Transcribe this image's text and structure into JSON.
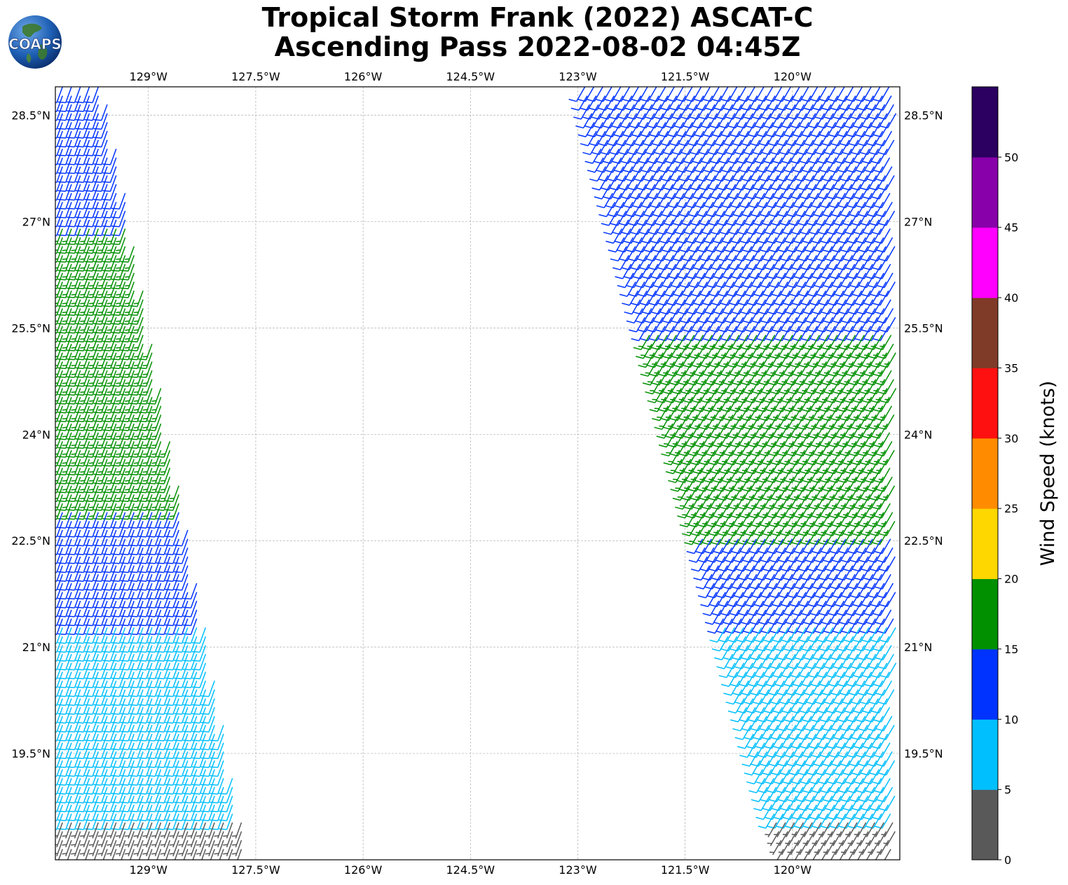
{
  "title": {
    "line1": "Tropical Storm Frank (2022) ASCAT-C",
    "line2": "Ascending Pass 2022-08-02 04:45Z"
  },
  "logo": {
    "text": "COAPS"
  },
  "map": {
    "lon_range": [
      -130.3,
      -118.5
    ],
    "lat_range": [
      18.0,
      28.9
    ],
    "gridlines": true,
    "lon_ticks": [
      {
        "value": -129.0,
        "label": "129°W"
      },
      {
        "value": -127.5,
        "label": "127.5°W"
      },
      {
        "value": -126.0,
        "label": "126°W"
      },
      {
        "value": -124.5,
        "label": "124.5°W"
      },
      {
        "value": -123.0,
        "label": "123°W"
      },
      {
        "value": -121.5,
        "label": "121.5°W"
      },
      {
        "value": -120.0,
        "label": "120°W"
      }
    ],
    "lat_ticks": [
      {
        "value": 28.5,
        "label": "28.5°N"
      },
      {
        "value": 27.0,
        "label": "27°N"
      },
      {
        "value": 25.5,
        "label": "25.5°N"
      },
      {
        "value": 24.0,
        "label": "24°N"
      },
      {
        "value": 22.5,
        "label": "22.5°N"
      },
      {
        "value": 21.0,
        "label": "21°N"
      },
      {
        "value": 19.5,
        "label": "19.5°N"
      }
    ]
  },
  "colorbar": {
    "label": "Wind Speed (knots)",
    "ticks": [
      "0",
      "5",
      "10",
      "15",
      "20",
      "25",
      "30",
      "35",
      "40",
      "45",
      "50"
    ],
    "bins": [
      {
        "from": 0,
        "to": 5,
        "color": "#595959"
      },
      {
        "from": 5,
        "to": 10,
        "color": "#00bfff"
      },
      {
        "from": 10,
        "to": 15,
        "color": "#0033ff"
      },
      {
        "from": 15,
        "to": 20,
        "color": "#009000"
      },
      {
        "from": 20,
        "to": 25,
        "color": "#ffd700"
      },
      {
        "from": 25,
        "to": 30,
        "color": "#ff8c00"
      },
      {
        "from": 30,
        "to": 35,
        "color": "#ff1010"
      },
      {
        "from": 35,
        "to": 40,
        "color": "#803a28"
      },
      {
        "from": 40,
        "to": 45,
        "color": "#ff00ff"
      },
      {
        "from": 45,
        "to": 50,
        "color": "#8800aa"
      },
      {
        "from": 50,
        "to": 55,
        "color": "#2b0060"
      }
    ]
  },
  "swaths": [
    {
      "name": "west",
      "lat_top": 28.9,
      "lat_bottom": 18.05,
      "west_lon_top": -130.2,
      "west_lon_bottom": -130.2,
      "east_lon_top": -129.6,
      "east_lon_bottom": -127.6,
      "spacing_deg": 0.125,
      "wind_dir_deg": 200,
      "zones": [
        {
          "from_lat": 27.0,
          "to_lat": 28.9,
          "speed_kt": 12
        },
        {
          "from_lat": 23.0,
          "to_lat": 27.0,
          "speed_kt": 17
        },
        {
          "from_lat": 21.4,
          "to_lat": 23.0,
          "speed_kt": 12
        },
        {
          "from_lat": 18.6,
          "to_lat": 21.4,
          "speed_kt": 8
        },
        {
          "from_lat": 18.05,
          "to_lat": 18.6,
          "speed_kt": 4
        }
      ]
    },
    {
      "name": "east",
      "lat_top": 28.9,
      "lat_bottom": 18.05,
      "west_lon_top": -122.9,
      "west_lon_bottom": -120.1,
      "east_lon_top": -118.55,
      "east_lon_bottom": -118.55,
      "spacing_deg": 0.125,
      "wind_dir_deg": 210,
      "zones": [
        {
          "from_lat": 25.5,
          "to_lat": 28.9,
          "speed_kt": 12
        },
        {
          "from_lat": 22.6,
          "to_lat": 25.5,
          "speed_kt": 17
        },
        {
          "from_lat": 21.4,
          "to_lat": 22.6,
          "speed_kt": 12
        },
        {
          "from_lat": 18.6,
          "to_lat": 21.4,
          "speed_kt": 8
        },
        {
          "from_lat": 18.05,
          "to_lat": 18.6,
          "speed_kt": 4
        }
      ]
    }
  ]
}
